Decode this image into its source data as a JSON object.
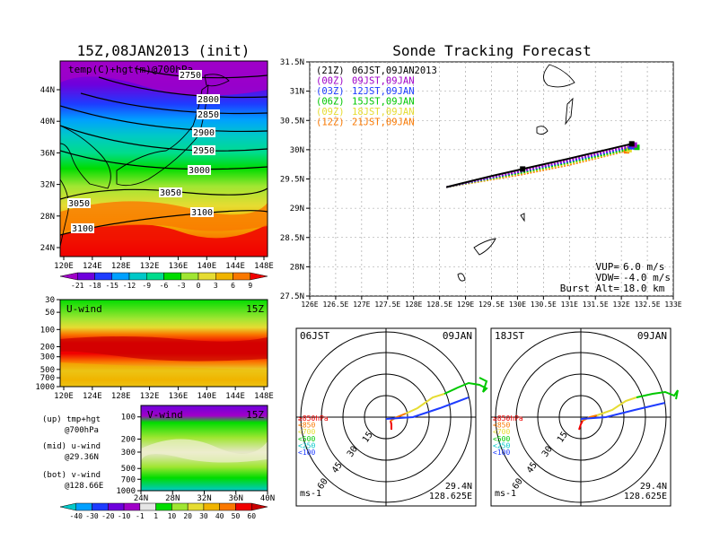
{
  "chart_data": [
    {
      "type": "heatmap",
      "title": "15Z,08JAN2013 (init)",
      "label": "temp(C)+hgt(m)@700hPa",
      "x_ticks": [
        "120E",
        "124E",
        "128E",
        "132E",
        "136E",
        "140E",
        "144E",
        "148E"
      ],
      "y_ticks": [
        "24N",
        "28N",
        "32N",
        "36N",
        "40N",
        "44N"
      ],
      "contour_labels": [
        "2750",
        "2800",
        "2850",
        "2900",
        "2950",
        "3000",
        "3050",
        "3050",
        "3100",
        "3100"
      ],
      "colorbar_ticks": [
        "-21",
        "-18",
        "-15",
        "-12",
        "-9",
        "-6",
        "-3",
        "0",
        "3",
        "6",
        "9"
      ],
      "colorbar_colors": [
        "#a000c8",
        "#6e00dc",
        "#1e3cff",
        "#00a0ff",
        "#00c8c8",
        "#00dc8c",
        "#00dc00",
        "#a0e632",
        "#e6dc32",
        "#f0b400",
        "#fa7800",
        "#f00000"
      ]
    },
    {
      "type": "heatmap",
      "label": "U-wind",
      "time_label": "15Z",
      "x_ticks": [
        "120E",
        "124E",
        "128E",
        "132E",
        "136E",
        "140E",
        "144E",
        "148E"
      ],
      "y_ticks": [
        "30",
        "50",
        "100",
        "200",
        "300",
        "500",
        "700",
        "1000"
      ]
    },
    {
      "type": "heatmap",
      "label": "V-wind",
      "time_label": "15Z",
      "x_ticks": [
        "24N",
        "28N",
        "32N",
        "36N",
        "40N"
      ],
      "y_ticks": [
        "100",
        "200",
        "300",
        "500",
        "700",
        "1000"
      ],
      "colorbar_ticks": [
        "-40",
        "-30",
        "-20",
        "-10",
        "-1",
        "1",
        "10",
        "20",
        "30",
        "40",
        "50",
        "60"
      ],
      "colorbar_colors": [
        "#00c8c8",
        "#00a0ff",
        "#1e3cff",
        "#6e00dc",
        "#a000c8",
        "#e6e6e6",
        "#00dc00",
        "#a0e632",
        "#e6dc32",
        "#f0b400",
        "#fa7800",
        "#f00000",
        "#c80000"
      ]
    },
    {
      "type": "line",
      "title": "Sonde Tracking Forecast",
      "xlim": [
        126,
        133
      ],
      "ylim": [
        27.5,
        31.5
      ],
      "x_ticks": [
        "126E",
        "126.5E",
        "127E",
        "127.5E",
        "128E",
        "128.5E",
        "129E",
        "129.5E",
        "130E",
        "130.5E",
        "131E",
        "131.5E",
        "132E",
        "132.5E",
        "133E"
      ],
      "y_ticks": [
        "27.5N",
        "28N",
        "28.5N",
        "29N",
        "29.5N",
        "30N",
        "30.5N",
        "31N",
        "31.5N"
      ],
      "series": [
        {
          "name": "(21Z)",
          "time": "06JST,09JAN2013",
          "color": "#000000",
          "x": [
            128.63,
            129.5,
            130.1,
            131.0,
            132.2
          ],
          "y": [
            29.36,
            29.55,
            29.67,
            29.85,
            30.1
          ],
          "end": [
            132.2,
            30.1
          ]
        },
        {
          "name": "(00Z)",
          "time": "09JST,09JAN",
          "color": "#a000c8",
          "x": [
            128.63,
            129.5,
            130.1,
            131.0,
            132.25
          ],
          "y": [
            29.36,
            29.53,
            29.64,
            29.82,
            30.08
          ],
          "end": [
            132.25,
            30.08
          ]
        },
        {
          "name": "(03Z)",
          "time": "12JST,09JAN",
          "color": "#1e3cff",
          "x": [
            128.63,
            129.5,
            130.1,
            131.0,
            132.2
          ],
          "y": [
            29.36,
            29.52,
            29.63,
            29.8,
            30.05
          ],
          "end": [
            132.2,
            30.05
          ]
        },
        {
          "name": "(06Z)",
          "time": "15JST,09JAN",
          "color": "#00c800",
          "x": [
            128.63,
            129.5,
            130.1,
            131.0,
            132.3
          ],
          "y": [
            29.36,
            29.51,
            29.61,
            29.78,
            30.04
          ],
          "end": [
            132.3,
            30.04
          ]
        },
        {
          "name": "(09Z)",
          "time": "18JST,09JAN",
          "color": "#e6dc32",
          "x": [
            128.63,
            129.5,
            130.1,
            131.0,
            132.15
          ],
          "y": [
            29.36,
            29.5,
            29.6,
            29.76,
            30.0
          ],
          "end": [
            132.15,
            30.0
          ]
        },
        {
          "name": "(12Z)",
          "time": "21JST,09JAN",
          "color": "#fa7800",
          "x": [
            128.63,
            129.5,
            130.1,
            131.0,
            132.1
          ],
          "y": [
            29.36,
            29.49,
            29.58,
            29.74,
            29.98
          ],
          "end": [
            132.1,
            29.98
          ]
        }
      ],
      "vup_label": "VUP=",
      "vup": "6.0 m/s",
      "vdw_label": "VDW=",
      "vdw": "-4.0 m/s",
      "burst_label": "Burst Alt=",
      "burst": "18.0 km"
    },
    {
      "type": "line",
      "label": "06JST",
      "date": "09JAN",
      "ring_labels": [
        "15",
        "30",
        "45",
        "60"
      ],
      "units": "ms-1",
      "lat": "29.4N",
      "lon": "128.625E",
      "legend": [
        {
          "label": "≥850hPa",
          "color": "#f00000"
        },
        {
          "label": "<850",
          "color": "#fa7800"
        },
        {
          "label": "<700",
          "color": "#e6dc32"
        },
        {
          "label": "<500",
          "color": "#00c800"
        },
        {
          "label": "<250",
          "color": "#00c8c8"
        },
        {
          "label": "<100",
          "color": "#1e3cff"
        }
      ]
    },
    {
      "type": "line",
      "label": "18JST",
      "date": "09JAN",
      "ring_labels": [
        "15",
        "30",
        "45",
        "60"
      ],
      "units": "ms-1",
      "lat": "29.4N",
      "lon": "128.625E",
      "legend": [
        {
          "label": "≥850hPa",
          "color": "#f00000"
        },
        {
          "label": "<850",
          "color": "#fa7800"
        },
        {
          "label": "<700",
          "color": "#e6dc32"
        },
        {
          "label": "<500",
          "color": "#00c800"
        },
        {
          "label": "<250",
          "color": "#00c8c8"
        },
        {
          "label": "<100",
          "color": "#1e3cff"
        }
      ]
    }
  ],
  "side_notes": [
    {
      "tag": "(up)",
      "text": "tmp+hgt",
      "sub": "@700hPa"
    },
    {
      "tag": "(mid)",
      "text": "u-wind",
      "sub": "@29.36N"
    },
    {
      "tag": "(bot)",
      "text": "v-wind",
      "sub": "@128.66E"
    }
  ]
}
